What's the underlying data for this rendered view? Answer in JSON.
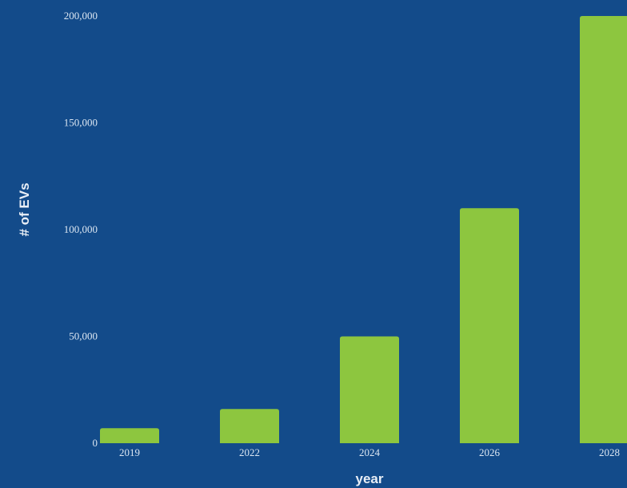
{
  "colors": {
    "background": "#134b8a",
    "bar": "#8dc63f",
    "text": "#dbe6f2"
  },
  "chart_data": {
    "type": "bar",
    "title": "",
    "xlabel": "year",
    "ylabel": "# of EVs",
    "categories": [
      "2019",
      "2022",
      "2024",
      "2026",
      "2028"
    ],
    "values": [
      7000,
      16000,
      50000,
      110000,
      200000
    ],
    "ylim": [
      0,
      200000
    ],
    "yticks": [
      0,
      50000,
      100000,
      150000,
      200000
    ],
    "ytick_labels": [
      "0",
      "50,000",
      "100,000",
      "150,000",
      "200,000"
    ],
    "grid": false,
    "legend": "none"
  }
}
